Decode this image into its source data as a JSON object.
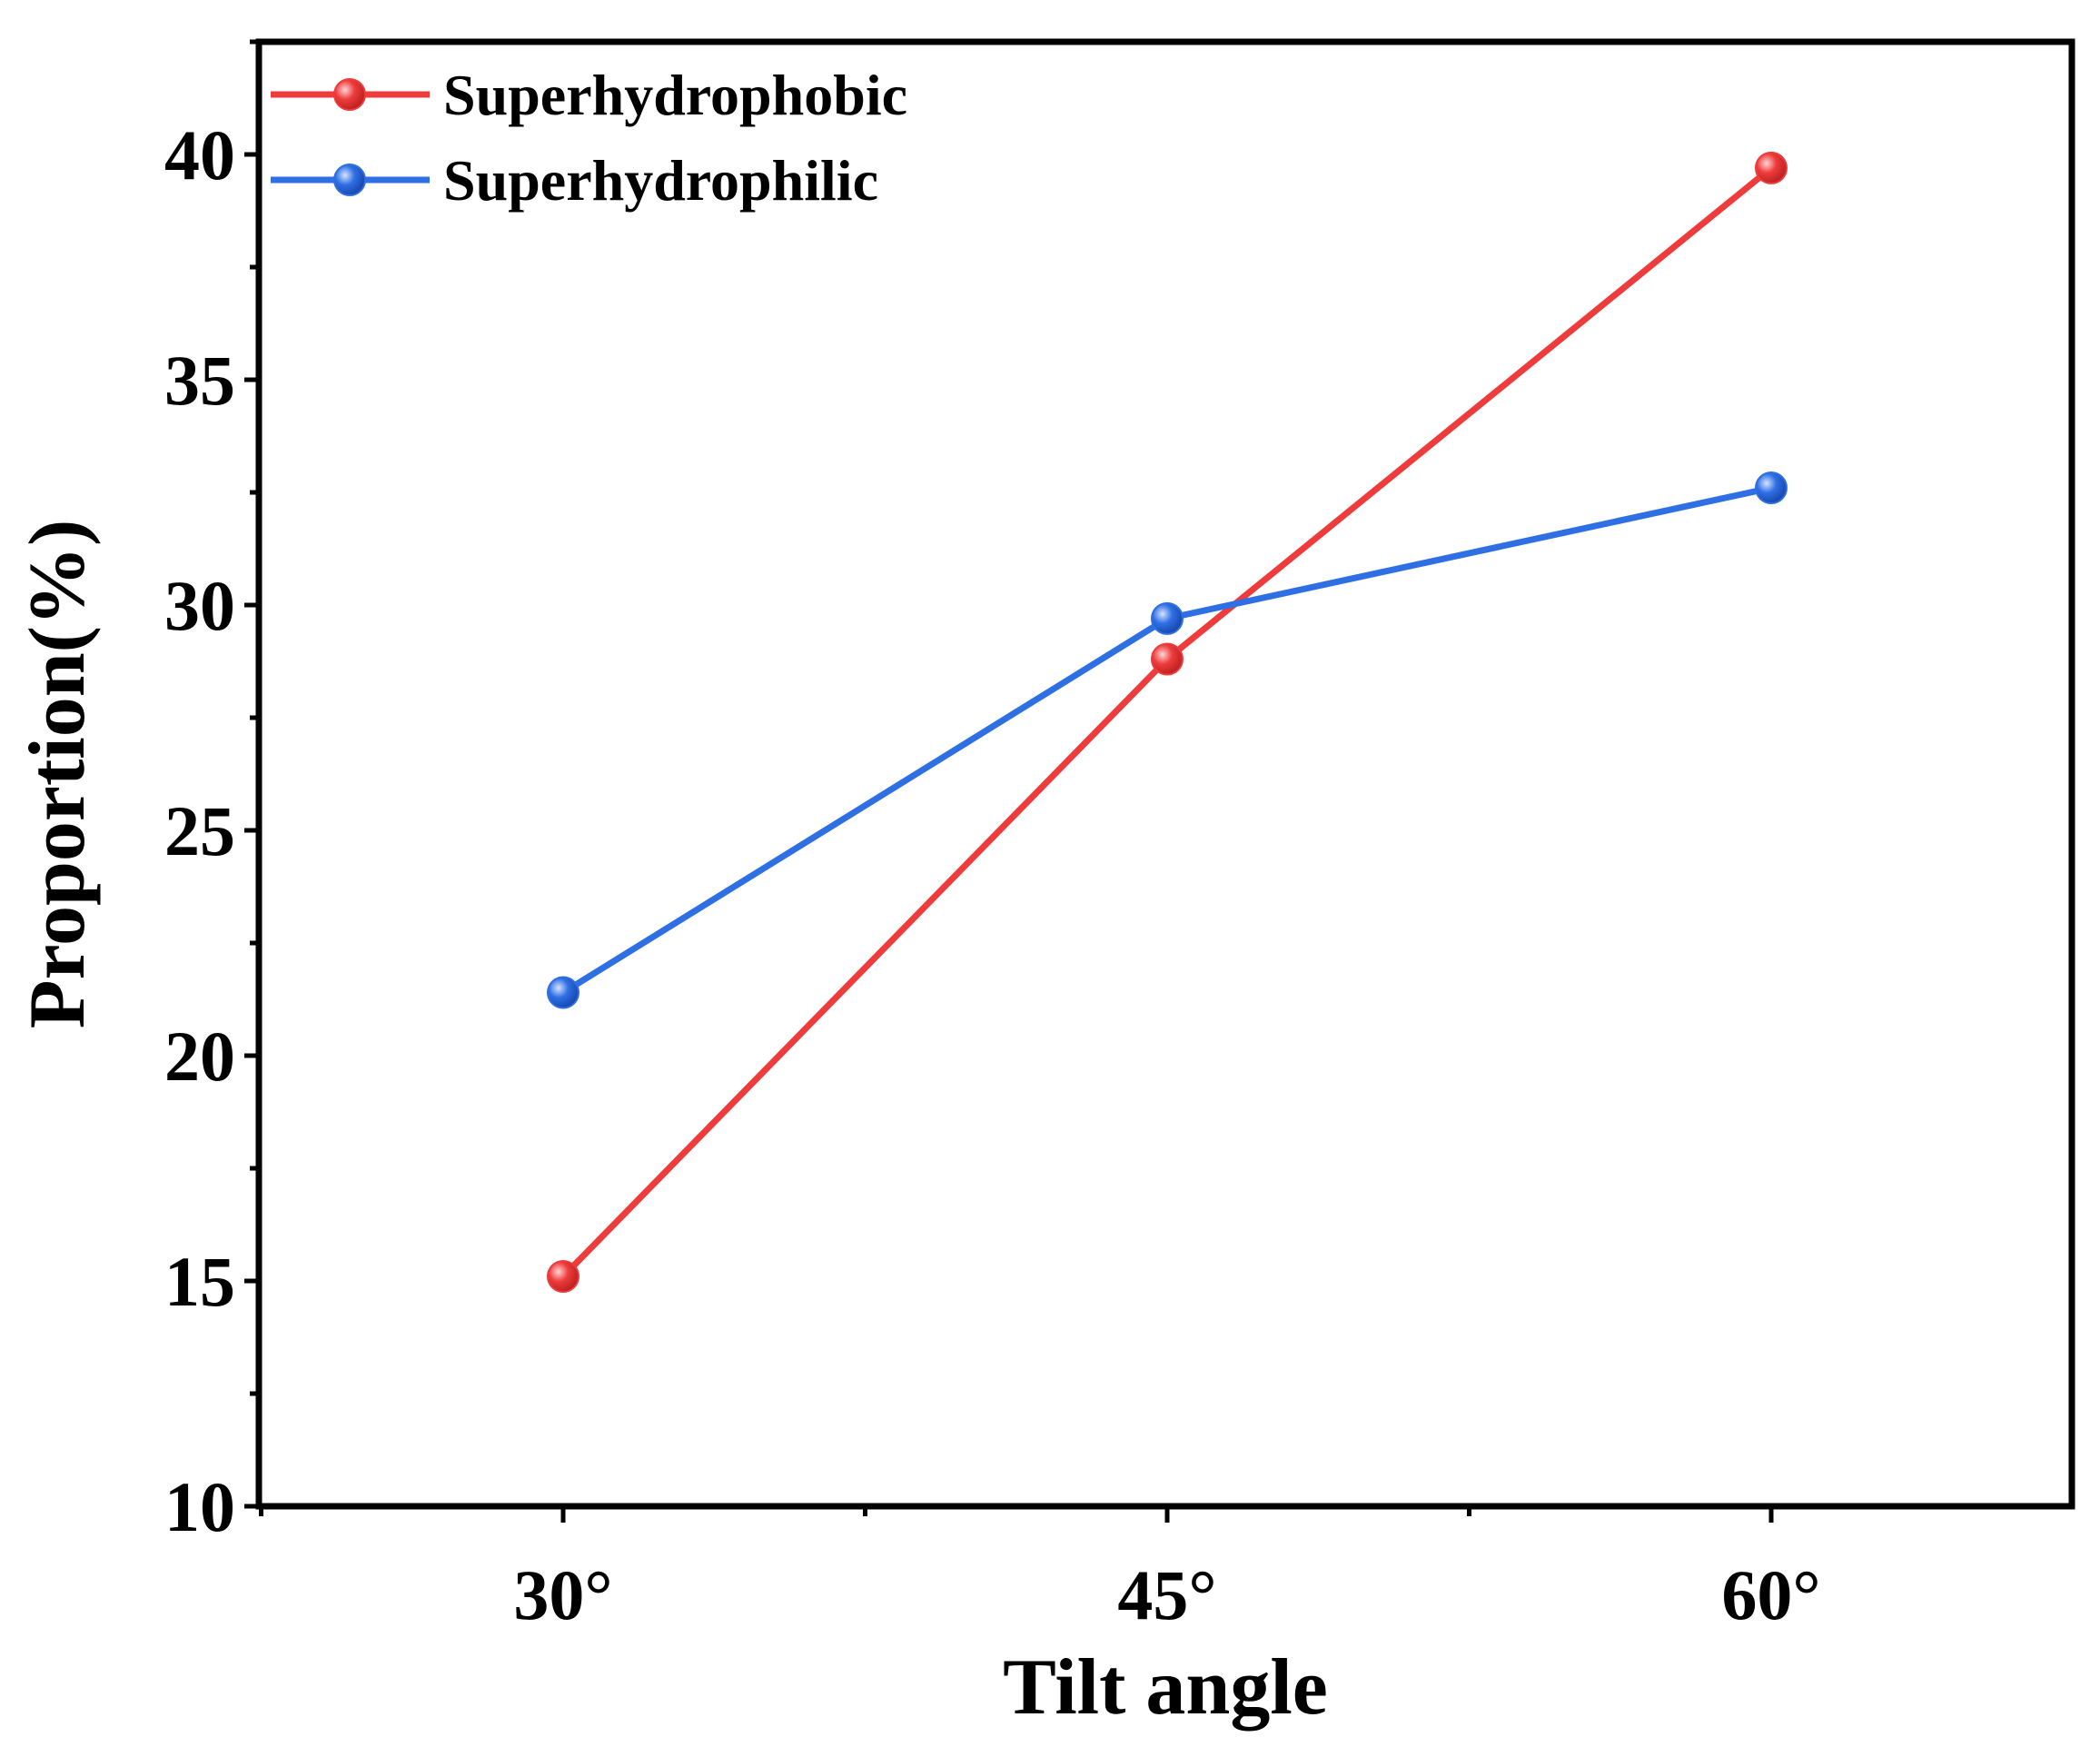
{
  "chart_data": {
    "type": "line",
    "title": "",
    "xlabel": "Tilt angle",
    "ylabel": "Proportion(%)",
    "categories": [
      "30°",
      "45°",
      "60°"
    ],
    "ylim": [
      10,
      42.5
    ],
    "yticks": [
      10,
      15,
      20,
      25,
      30,
      35,
      40
    ],
    "grid": false,
    "legend": "top-left",
    "series": [
      {
        "name": "Superhydrophobic",
        "color": "#ee3b3b",
        "values": [
          15.1,
          28.8,
          39.7
        ]
      },
      {
        "name": "Superhydrophilic",
        "color": "#2f6fe4",
        "values": [
          21.4,
          29.7,
          32.6
        ]
      }
    ]
  }
}
